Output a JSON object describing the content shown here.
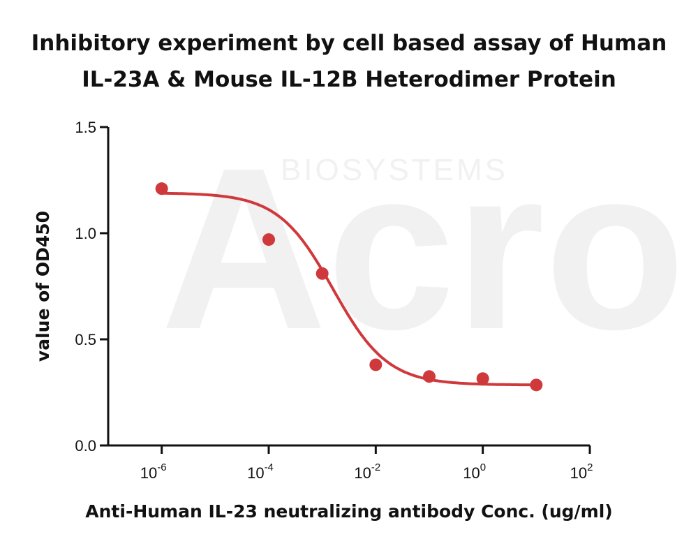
{
  "chart_data": {
    "type": "scatter",
    "title": "Inhibitory experiment by cell based assay of Human IL-23A & Mouse IL-12B Heterodimer Protein",
    "title_lines": [
      "Inhibitory experiment by cell based assay of Human",
      "IL-23A & Mouse IL-12B Heterodimer Protein"
    ],
    "xlabel": "Anti-Human IL-23 neutralizing antibody Conc. (ug/ml)",
    "ylabel": "value of OD450",
    "x_scale": "log",
    "xlim": [
      1e-07,
      100
    ],
    "ylim": [
      0,
      1.5
    ],
    "x_ticks": [
      {
        "value": 1e-06,
        "base": "10",
        "exp": "-6"
      },
      {
        "value": 0.0001,
        "base": "10",
        "exp": "-4"
      },
      {
        "value": 0.01,
        "base": "10",
        "exp": "-2"
      },
      {
        "value": 1,
        "base": "10",
        "exp": "0"
      },
      {
        "value": 100,
        "base": "10",
        "exp": "2"
      }
    ],
    "y_ticks": [
      {
        "value": 0,
        "label": "0.0"
      },
      {
        "value": 0.5,
        "label": "0.5"
      },
      {
        "value": 1.0,
        "label": "1.0"
      },
      {
        "value": 1.5,
        "label": "1.5"
      }
    ],
    "grid": false,
    "color": "#d0393c",
    "series": [
      {
        "points": [
          {
            "x": 1e-06,
            "y": 1.21
          },
          {
            "x": 0.0001,
            "y": 0.97
          },
          {
            "x": 0.001,
            "y": 0.81
          },
          {
            "x": 0.01,
            "y": 0.38
          },
          {
            "x": 0.1,
            "y": 0.325
          },
          {
            "x": 1,
            "y": 0.315
          },
          {
            "x": 10,
            "y": 0.285
          }
        ],
        "fit": {
          "type": "4PL",
          "bottom": 0.285,
          "top": 1.19,
          "log_ec50": -2.8,
          "hill_slope": -0.85
        }
      }
    ],
    "watermark": {
      "logo": "Acro",
      "text": "BIOSYSTEMS"
    }
  }
}
